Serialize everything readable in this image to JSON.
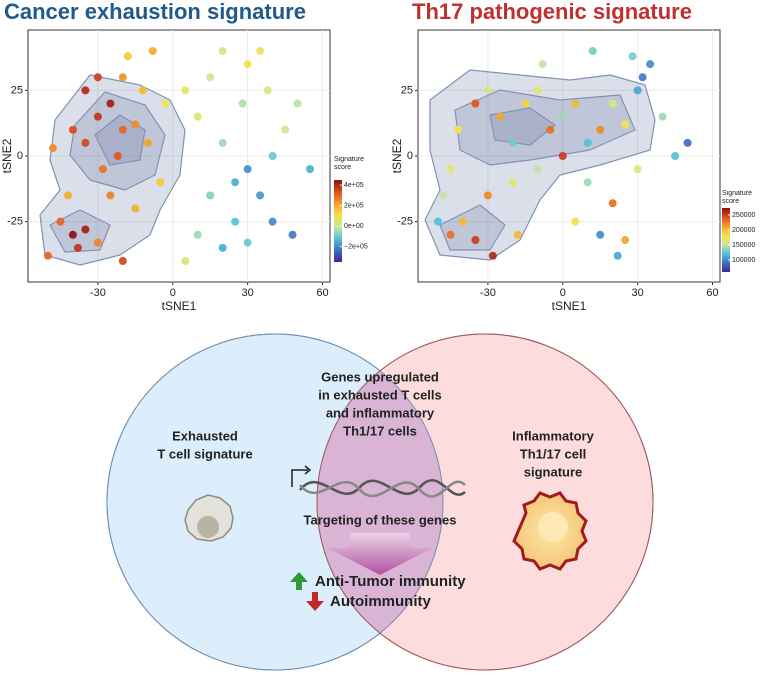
{
  "chart_data": [
    {
      "type": "scatter",
      "title": "Cancer exhaustion signature",
      "title_color": "#1f5a8c",
      "x_label": "tSNE1",
      "y_label": "tSNE2",
      "xlim": [
        -58,
        63
      ],
      "ylim": [
        -48,
        48
      ],
      "xticks": [
        -30,
        0,
        30,
        60
      ],
      "yticks": [
        -25,
        0,
        25
      ],
      "grid": true,
      "x": [
        -40,
        -35,
        -45,
        -38,
        -30,
        -42,
        -48,
        -35,
        -30,
        -25,
        -20,
        -15,
        -22,
        -28,
        -35,
        -30,
        -20,
        -12,
        -10,
        -5,
        -15,
        -25,
        -40,
        -18,
        -8,
        -3,
        -50,
        -20,
        10,
        15,
        20,
        25,
        30,
        35,
        40,
        45,
        30,
        35,
        20,
        50,
        55,
        25,
        40,
        15,
        5,
        10,
        30,
        48,
        20,
        5,
        38,
        28
      ],
      "y": [
        -30,
        -28,
        -25,
        -35,
        -33,
        -15,
        3,
        5,
        15,
        20,
        10,
        12,
        0,
        -5,
        25,
        30,
        30,
        25,
        5,
        -10,
        -20,
        -15,
        10,
        38,
        40,
        20,
        -38,
        -40,
        15,
        30,
        5,
        -10,
        -5,
        -15,
        0,
        10,
        35,
        40,
        40,
        20,
        -5,
        -25,
        -25,
        -15,
        25,
        -30,
        -33,
        -30,
        -35,
        -40,
        25,
        20
      ],
      "score": [
        450000,
        420000,
        300000,
        380000,
        260000,
        200000,
        250000,
        350000,
        380000,
        420000,
        300000,
        250000,
        320000,
        280000,
        400000,
        360000,
        240000,
        180000,
        220000,
        150000,
        200000,
        260000,
        340000,
        150000,
        200000,
        100000,
        300000,
        350000,
        50000,
        0,
        -50000,
        -150000,
        -200000,
        -180000,
        -100000,
        0,
        100000,
        80000,
        20000,
        -20000,
        -150000,
        -120000,
        -200000,
        -80000,
        60000,
        -50000,
        -100000,
        -220000,
        -150000,
        50000,
        40000,
        -30000
      ],
      "colorbar_title": "Signature score",
      "clim": [
        -350000,
        450000
      ],
      "cticks": [
        {
          "value": 400000,
          "label": "4e+05"
        },
        {
          "value": 200000,
          "label": "2e+05"
        },
        {
          "value": 0,
          "label": "0e+00"
        },
        {
          "value": -200000,
          "label": "−2e+05"
        }
      ],
      "colorscale": [
        "#3b2a8a",
        "#3f6fc4",
        "#4fc4d6",
        "#c8e6a0",
        "#f5e24a",
        "#f4a025",
        "#e04a20",
        "#8a1010"
      ]
    },
    {
      "type": "scatter",
      "title": "Th17 pathogenic signature",
      "title_color": "#c0302e",
      "x_label": "tSNE1",
      "y_label": "tSNE2",
      "xlim": [
        -58,
        63
      ],
      "ylim": [
        -48,
        48
      ],
      "xticks": [
        -30,
        0,
        30,
        60
      ],
      "yticks": [
        -25,
        0,
        25
      ],
      "grid": true,
      "x": [
        -45,
        -40,
        -35,
        -48,
        -42,
        -35,
        -30,
        -25,
        -20,
        -15,
        -10,
        -5,
        0,
        5,
        10,
        15,
        20,
        25,
        30,
        32,
        35,
        28,
        -20,
        -30,
        -10,
        0,
        10,
        5,
        15,
        20,
        25,
        30,
        45,
        50,
        40,
        -28,
        -18,
        -50,
        -8,
        12,
        -45,
        22
      ],
      "y": [
        -30,
        -25,
        -32,
        -15,
        10,
        20,
        25,
        15,
        5,
        20,
        25,
        10,
        15,
        20,
        5,
        10,
        20,
        12,
        25,
        30,
        35,
        38,
        -10,
        -15,
        -5,
        0,
        -10,
        -25,
        -30,
        -18,
        -32,
        -5,
        0,
        5,
        15,
        -38,
        -30,
        -25,
        35,
        40,
        -5,
        -38
      ],
      "score": [
        230000,
        200000,
        250000,
        150000,
        180000,
        240000,
        160000,
        210000,
        130000,
        190000,
        170000,
        230000,
        140000,
        200000,
        120000,
        220000,
        160000,
        180000,
        110000,
        95000,
        100000,
        130000,
        170000,
        220000,
        150000,
        250000,
        140000,
        180000,
        100000,
        230000,
        210000,
        160000,
        120000,
        90000,
        140000,
        260000,
        200000,
        120000,
        150000,
        130000,
        170000,
        110000
      ],
      "colorbar_title": "Signature score",
      "clim": [
        60000,
        273000
      ],
      "cticks": [
        250000,
        200000,
        150000,
        100000
      ],
      "colorscale": [
        "#3b2a8a",
        "#3f6fc4",
        "#4fc4d6",
        "#c8e6a0",
        "#f5e24a",
        "#f4a025",
        "#e04a20",
        "#8a1010"
      ]
    }
  ],
  "venn": {
    "left_label": [
      "Exhausted",
      "T cell signature"
    ],
    "right_label": [
      "Inflammatory",
      "Th1/17 cell",
      "signature"
    ],
    "overlap_label": [
      "Genes upregulated",
      "in exhausted T cells",
      "and inflammatory",
      "Th1/17 cells"
    ],
    "action": "Targeting of these genes",
    "outcomes": [
      "Anti-Tumor immunity",
      "Autoimmunity"
    ]
  }
}
